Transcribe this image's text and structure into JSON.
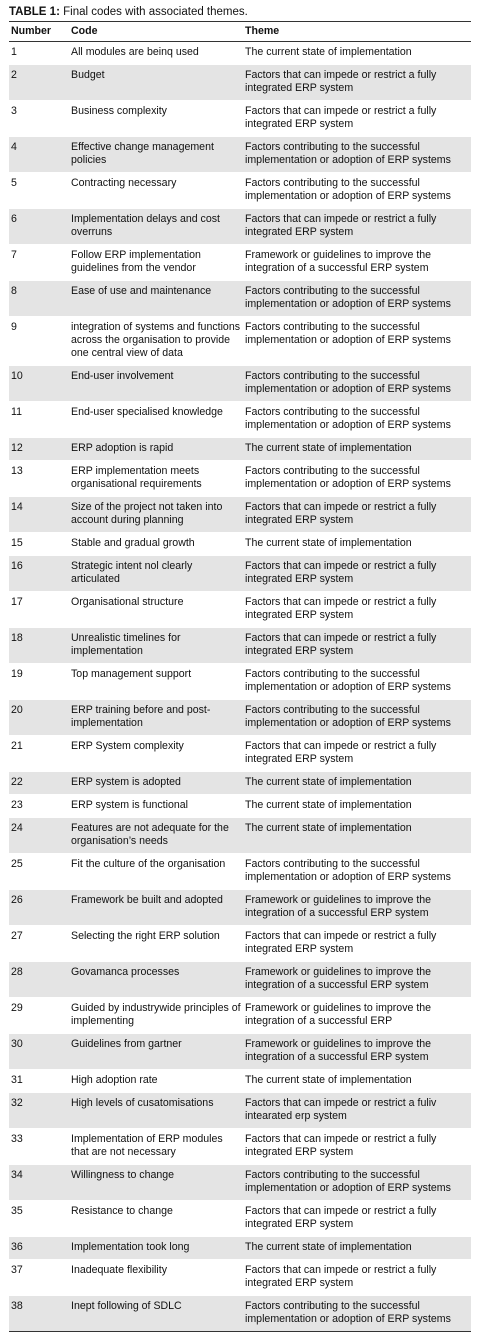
{
  "caption": {
    "label": "TABLE 1:",
    "text": "Final codes with associated themes."
  },
  "table": {
    "headers": [
      "Number",
      "Code",
      "Theme"
    ],
    "rows": [
      [
        "1",
        "All modules are beinq used",
        "The current state of implementation"
      ],
      [
        "2",
        "Budget",
        "Factors that can impede or restrict a fully integrated ERP system"
      ],
      [
        "3",
        "Business complexity",
        "Factors that can impede or restrict a fully integrated ERP system"
      ],
      [
        "4",
        "Effective change management policies",
        "Factors contributing to the successful implementation or adoption of ERP systems"
      ],
      [
        "5",
        "Contracting necessary",
        "Factors contributing to the successful implementation or adoption of ERP systems"
      ],
      [
        "6",
        "Implementation delays and cost overruns",
        "Factors that can impede or restrict a fully integrated ERP system"
      ],
      [
        "7",
        "Follow ERP implementation guidelines from the vendor",
        "Framework or guidelines to improve the integration of a successful ERP system"
      ],
      [
        "8",
        "Ease of use and maintenance",
        "Factors contributing to the successful implementation or adoption of ERP systems"
      ],
      [
        "9",
        "integration of systems and functions across the organisation to provide one central view of data",
        "Factors contributing to the successful implementation or adoption of ERP systems"
      ],
      [
        "10",
        "End-user involvement",
        "Factors contributing to the successful implementation or adoption of ERP systems"
      ],
      [
        "11",
        "End-user specialised knowledge",
        "Factors contributing to the successful implementation or adoption of ERP systems"
      ],
      [
        "12",
        "ERP adoption is rapid",
        "The current state of implementation"
      ],
      [
        "13",
        "ERP implementation meets organisational requirements",
        "Factors contributing to the successful implementation or adoption of ERP systems"
      ],
      [
        "14",
        "Size of the project not taken into account during planning",
        "Factors that can impede or restrict a fully integrated ERP system"
      ],
      [
        "15",
        "Stable and gradual growth",
        "The current state of implementation"
      ],
      [
        "16",
        "Strategic intent nol clearly articulated",
        "Factors that can impede or restrict a fully integrated ERP system"
      ],
      [
        "17",
        "Organisational structure",
        "Factors that can impede or restrict a fully integrated ERP system"
      ],
      [
        "18",
        "Unrealistic timelines for implementation",
        "Factors that can impede or restrict a fully integrated ERP system"
      ],
      [
        "19",
        "Top management support",
        "Factors contributing to the successful implementation or adoption of ERP systems"
      ],
      [
        "20",
        "ERP training before and post-implementation",
        "Factors contributing to the successful implementation or adoption of ERP systems"
      ],
      [
        "21",
        "ERP System complexity",
        "Factors that can impede or restrict a fully integrated ERP system"
      ],
      [
        "22",
        "ERP system is adopted",
        "The current state of implementation"
      ],
      [
        "23",
        "ERP system is functional",
        "The current state of implementation"
      ],
      [
        "24",
        "Features are not adequate for the organisation’s needs",
        "The current state of implementation"
      ],
      [
        "25",
        "Fit the culture of the organisation",
        "Factors contributing to the successful implementation or adoption of ERP systems"
      ],
      [
        "26",
        "Framework be built and adopted",
        "Framework or guidelines to improve the integration of a successful ERP system"
      ],
      [
        "27",
        "Selecting the right ERP solution",
        "Factors that can impede or restrict a fully integrated ERP system"
      ],
      [
        "28",
        "Govamanca processes",
        "Framework or guidelines to improve the integration of a successful ERP system"
      ],
      [
        "29",
        "Guided by industrywide principles of implementing",
        "Framework or guidelines to improve the integration of a successful ERP"
      ],
      [
        "30",
        "Guidelines from gartner",
        "Framework or guidelines to improve the integration of a successful ERP system"
      ],
      [
        "31",
        "High adoption rate",
        "The current state of implementation"
      ],
      [
        "32",
        "High levels of cusatomisations",
        "Factors that can impede or restrict a fuliv intearated erp system"
      ],
      [
        "33",
        "Implementation of ERP modules that are not necessary",
        "Factors that can impede or restrict a fully integrated ERP system"
      ],
      [
        "34",
        "Willingness to change",
        "Factors contributing to the successful implementation or adoption of ERP systems"
      ],
      [
        "35",
        "Resistance to change",
        "Factors that can impede or restrict a fully integrated ERP system"
      ],
      [
        "36",
        "Implementation took long",
        "The current state of implementation"
      ],
      [
        "37",
        "Inadequate flexibility",
        "Factors that can impede or restrict a fully integrated ERP system"
      ],
      [
        "38",
        "Inept following of SDLC",
        "Factors contributing to the successful implementation or adoption of ERP systems"
      ]
    ]
  }
}
